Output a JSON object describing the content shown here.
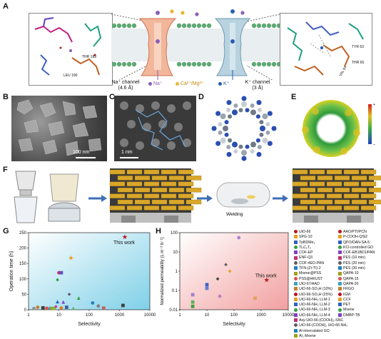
{
  "panels": {
    "a": "A",
    "b": "B",
    "c": "C",
    "d": "D",
    "e": "E",
    "f": "F",
    "g": "G",
    "h": "H"
  },
  "panel_a": {
    "na_channel_label": "Na⁺ channel",
    "na_channel_size": "(4.6 Å)",
    "k_channel_label": "K⁺ channel",
    "k_channel_size": "(3 Å)",
    "legend_na": "Na⁺",
    "legend_ca_mg": "Ca²⁺/Mg²⁺",
    "legend_k": "K⁺",
    "residues_left": [
      "THR 189",
      "LEU 190"
    ],
    "residues_right": [
      "TYR 63",
      "VAL 64",
      "THR 65"
    ],
    "colors": {
      "na": "#8a5fb8",
      "ca_mg": "#e8b630",
      "k": "#2a5fb0",
      "membrane": "#5fa874"
    }
  },
  "panel_b": {
    "scale_bar": "100 nm"
  },
  "panel_c": {
    "scale_bar": "1 nm"
  },
  "panel_e": {
    "colorbar_top": "+",
    "colorbar_bottom": "–"
  },
  "panel_f": {
    "step_label": "Welding"
  },
  "chart_data": [
    {
      "id": "G",
      "type": "scatter",
      "xlabel": "Selectivity",
      "ylabel": "Operation time (h)",
      "xscale": "log",
      "xlim": [
        1,
        10000
      ],
      "ylim": [
        0,
        250
      ],
      "xticks": [
        "1",
        "10",
        "100",
        "1000",
        "10000"
      ],
      "yticks": [
        "0",
        "50",
        "100",
        "150",
        "200",
        "250"
      ],
      "annotation": "This work",
      "points": [
        {
          "x": 1500,
          "y": 236,
          "color": "#c0141c",
          "shape": "star"
        },
        {
          "x": 25,
          "y": 168,
          "color": "#e8a020",
          "shape": "star"
        },
        {
          "x": 10,
          "y": 120,
          "color": "#c03070",
          "shape": "circle"
        },
        {
          "x": 12,
          "y": 120,
          "color": "#6050c0",
          "shape": "square"
        },
        {
          "x": 9,
          "y": 97,
          "color": "#30a040",
          "shape": "diamond"
        },
        {
          "x": 22,
          "y": 50,
          "color": "#606060",
          "shape": "diamond"
        },
        {
          "x": 45,
          "y": 38,
          "color": "#30a040",
          "shape": "triangle"
        },
        {
          "x": 9,
          "y": 26,
          "color": "#2060c0",
          "shape": "triangle"
        },
        {
          "x": 14,
          "y": 25,
          "color": "#8040c0",
          "shape": "triangle"
        },
        {
          "x": 130,
          "y": 22,
          "color": "#2080c0",
          "shape": "circle"
        },
        {
          "x": 2,
          "y": 8,
          "color": "#c08030",
          "shape": "circle"
        },
        {
          "x": 3,
          "y": 6,
          "color": "#404040",
          "shape": "square"
        },
        {
          "x": 4,
          "y": 5,
          "color": "#e05050",
          "shape": "circle"
        },
        {
          "x": 5,
          "y": 7,
          "color": "#40a0c0",
          "shape": "triangle"
        },
        {
          "x": 6,
          "y": 4,
          "color": "#a0a020",
          "shape": "square"
        },
        {
          "x": 7,
          "y": 5,
          "color": "#80c040",
          "shape": "circle"
        },
        {
          "x": 8,
          "y": 10,
          "color": "#c040a0",
          "shape": "diamond"
        },
        {
          "x": 12,
          "y": 6,
          "color": "#e08020",
          "shape": "circle"
        },
        {
          "x": 18,
          "y": 8,
          "color": "#4060a0",
          "shape": "square"
        },
        {
          "x": 1.5,
          "y": 4,
          "color": "#909090",
          "shape": "circle"
        },
        {
          "x": 30,
          "y": 5,
          "color": "#60b060",
          "shape": "triangle"
        },
        {
          "x": 200,
          "y": 12,
          "color": "#808080",
          "shape": "circle"
        },
        {
          "x": 300,
          "y": 5,
          "color": "#c06060",
          "shape": "square"
        },
        {
          "x": 1300,
          "y": 14,
          "color": "#404040",
          "shape": "square"
        }
      ]
    },
    {
      "id": "H",
      "type": "scatter",
      "xlabel": "Selectivity",
      "ylabel": "Normalized permeability (L m⁻² h⁻¹)",
      "xscale": "log",
      "yscale": "log",
      "xlim": [
        1,
        10000
      ],
      "ylim": [
        0.01,
        100
      ],
      "xticks": [
        "1",
        "10",
        "100",
        "1000",
        "10000"
      ],
      "yticks": [
        "0.01",
        "0.1",
        "1",
        "10",
        "100"
      ],
      "annotation": "This work",
      "points": [
        {
          "x": 1600,
          "y": 0.35,
          "color": "#c0141c",
          "shape": "star"
        },
        {
          "x": 150,
          "y": 55,
          "color": "#b080d0",
          "shape": "circle"
        },
        {
          "x": 50,
          "y": 2.2,
          "color": "#606060",
          "shape": "diamond"
        },
        {
          "x": 70,
          "y": 1.0,
          "color": "#e8a020",
          "shape": "diamond"
        },
        {
          "x": 25,
          "y": 0.4,
          "color": "#404040",
          "shape": "diamond"
        },
        {
          "x": 10,
          "y": 0.2,
          "color": "#4060c0",
          "shape": "square"
        },
        {
          "x": 10,
          "y": 0.13,
          "color": "#6080d0",
          "shape": "square"
        },
        {
          "x": 3,
          "y": 0.06,
          "color": "#a080d0",
          "shape": "square"
        },
        {
          "x": 3,
          "y": 0.025,
          "color": "#60b060",
          "shape": "square"
        },
        {
          "x": 3,
          "y": 0.015,
          "color": "#40a040",
          "shape": "square"
        },
        {
          "x": 30,
          "y": 0.05,
          "color": "#c080c0",
          "shape": "circle"
        },
        {
          "x": 600,
          "y": 0.04,
          "color": "#e0a060",
          "shape": "square"
        }
      ]
    }
  ],
  "legend": {
    "col1": [
      "UiO-66",
      "SPG-10",
      "TpBDMe₂",
      "Ti₃C₂Tₓ",
      "COF-EP",
      "ENF-Q3",
      "COF-4EO-PAN",
      "TFN-(Zr-Ti)-2",
      "Mxene@PSS",
      "PSS@HKUST",
      "UiO-67/AAO",
      "UiO-66-SO₃H (10%)",
      "UiO-66-SO₃H (25%)",
      "UiO-66-NH₂ LLM-1",
      "UiO-66-NH₂ LLM-2",
      "UiO-66-NH₂ LLM-3",
      "UiO-66-NH₂ LLM-4",
      "Asy-UiO-66-(COOH)₂-SNC",
      "UiO-66-(COOH)₂ UiO-66-NH₂",
      "Al-intercalated GO",
      "Al₂ Mxene"
    ],
    "col2": [
      "AAO/PTI/PCN",
      "P-COOH-QSi2",
      "QPO/DAN-SA-5",
      "KCl-controlled GO",
      "COF-EB1BD1/PAN",
      "PES (10 min)",
      "PES (20 min)",
      "PES (30 min)",
      "QAPA-10",
      "QAPA-15",
      "QAPA-20",
      "FRGO",
      "IGM",
      "CCF",
      "PET",
      "Mxene",
      "DMBP-TB"
    ]
  }
}
